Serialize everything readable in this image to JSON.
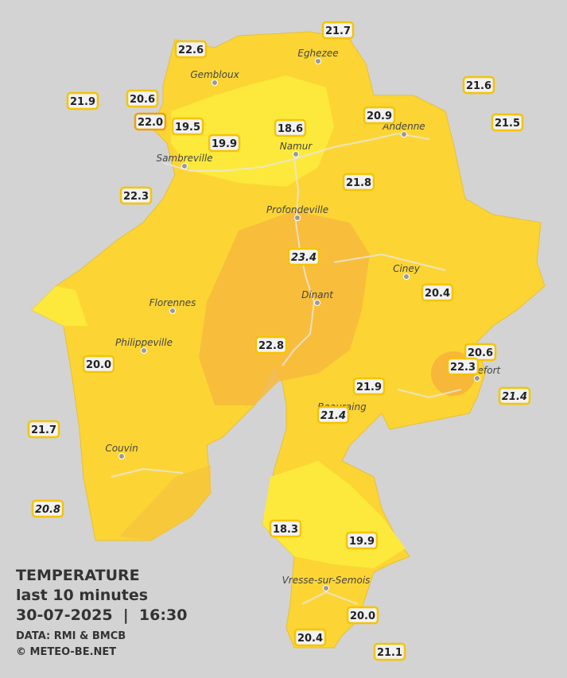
{
  "stations": [
    {
      "label": "22.6"
    },
    {
      "label": "21.7"
    },
    {
      "label": "21.6"
    },
    {
      "label": "21.9"
    },
    {
      "label": "20.6"
    },
    {
      "label": "22.0"
    },
    {
      "label": "19.5"
    },
    {
      "label": "19.9"
    },
    {
      "label": "18.6"
    },
    {
      "label": "20.9"
    },
    {
      "label": "21.5"
    },
    {
      "label": "22.3"
    },
    {
      "label": "21.8"
    },
    {
      "label": "23.4",
      "italic": true
    },
    {
      "label": "20.4"
    },
    {
      "label": "22.8"
    },
    {
      "label": "20.6"
    },
    {
      "label": "22.3"
    },
    {
      "label": "20.0"
    },
    {
      "label": "21.9"
    },
    {
      "label": "21.4",
      "italic": true
    },
    {
      "label": "21.4",
      "italic": true
    },
    {
      "label": "21.7"
    },
    {
      "label": "20.8",
      "italic": true
    },
    {
      "label": "18.3"
    },
    {
      "label": "19.9"
    },
    {
      "label": "20.0"
    },
    {
      "label": "20.4"
    },
    {
      "label": "21.1"
    }
  ],
  "towns": [
    "Eghezee",
    "Gembloux",
    "Andenne",
    "Namur",
    "Sambreville",
    "Profondeville",
    "Ciney",
    "Florennes",
    "Dinant",
    "Philippeville",
    "Rochefort",
    "Beauraing",
    "Couvin",
    "Vresse-sur-Semois"
  ],
  "legend": {
    "title": "TEMPERATURE",
    "subtitle": "last 10 minutes",
    "datetime": "30-07-2025  |  16:30",
    "source": "DATA: RMI & BMCB",
    "credit": "© METEO-BE.NET"
  }
}
